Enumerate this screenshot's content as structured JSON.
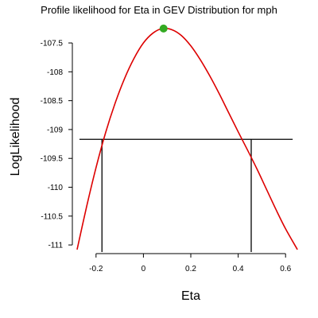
{
  "chart_data": {
    "type": "line",
    "title": "Profile likelihood for Eta in GEV Distribution for mph",
    "xlabel": "Eta",
    "ylabel": "LogLikelihood",
    "xlim": [
      -0.3,
      0.7
    ],
    "ylim": [
      -111.15,
      -107.1
    ],
    "x_ticks": [
      -0.2,
      0,
      0.2,
      0.4,
      0.6
    ],
    "x_tick_labels": [
      "-0.2",
      "0",
      "0.2",
      "0.4",
      "0.6"
    ],
    "y_ticks": [
      -107.5,
      -108,
      -108.5,
      -109,
      -109.5,
      -110,
      -110.5,
      -111
    ],
    "y_tick_labels": [
      "-107.5",
      "-108",
      "-108.5",
      "-109",
      "-109.5",
      "-110",
      "-110.5",
      "-111"
    ],
    "grid": false,
    "series": [
      {
        "color": "#dd0000",
        "x": [
          -0.28,
          -0.24,
          -0.2,
          -0.16,
          -0.12,
          -0.08,
          -0.04,
          0.0,
          0.04,
          0.08,
          0.12,
          0.16,
          0.2,
          0.24,
          0.28,
          0.32,
          0.36,
          0.4,
          0.44,
          0.48,
          0.52,
          0.56,
          0.6,
          0.65
        ],
        "y": [
          -111.08,
          -110.34,
          -109.66,
          -109.06,
          -108.55,
          -108.12,
          -107.77,
          -107.5,
          -107.33,
          -107.25,
          -107.27,
          -107.37,
          -107.55,
          -107.79,
          -108.07,
          -108.38,
          -108.71,
          -109.04,
          -109.36,
          -109.69,
          -110.04,
          -110.39,
          -110.72,
          -111.08
        ]
      }
    ],
    "maximum_point": {
      "x": 0.085,
      "y": -107.25,
      "color": "#33aa22"
    },
    "confidence_cutoff": {
      "y": -109.17,
      "x_range": [
        -0.27,
        0.63
      ]
    },
    "confidence_bounds": [
      -0.175,
      0.455
    ],
    "line_color_reference": "#000000"
  }
}
